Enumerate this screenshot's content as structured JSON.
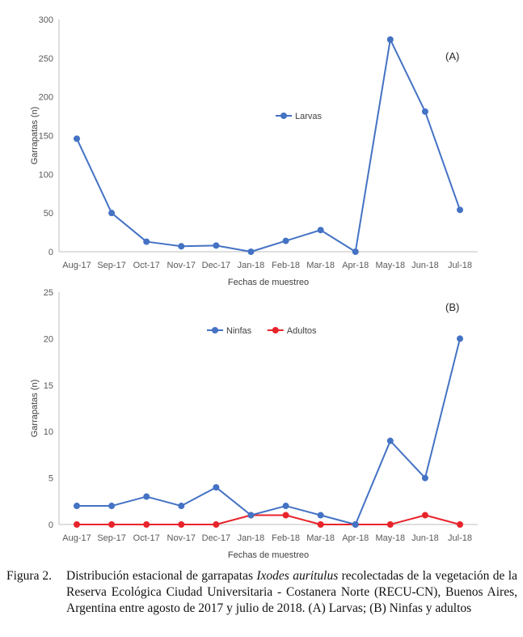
{
  "chart_data": [
    {
      "type": "line",
      "panel_label": "(A)",
      "categories": [
        "Aug-17",
        "Sep-17",
        "Oct-17",
        "Nov-17",
        "Dec-17",
        "Jan-18",
        "Feb-18",
        "Mar-18",
        "Apr-18",
        "May-18",
        "Jun-18",
        "Jul-18"
      ],
      "series": [
        {
          "name": "Larvas",
          "color": "#4472C4",
          "values": [
            146,
            50,
            13,
            7,
            8,
            0,
            14,
            28,
            0,
            274,
            181,
            54
          ]
        }
      ],
      "xlabel": "Fechas de muestreo",
      "ylabel": "Garrapatas (n)",
      "ylim": [
        0,
        300
      ],
      "yticks": [
        0,
        50,
        100,
        150,
        200,
        250,
        300
      ],
      "grid": false,
      "legend_position": "top-center"
    },
    {
      "type": "line",
      "panel_label": "(B)",
      "categories": [
        "Aug-17",
        "Sep-17",
        "Oct-17",
        "Nov-17",
        "Dec-17",
        "Jan-18",
        "Feb-18",
        "Mar-18",
        "Apr-18",
        "May-18",
        "Jun-18",
        "Jul-18"
      ],
      "series": [
        {
          "name": "Ninfas",
          "color": "#4472C4",
          "values": [
            2,
            2,
            3,
            2,
            4,
            1,
            2,
            1,
            0,
            9,
            5,
            20
          ]
        },
        {
          "name": "Adultos",
          "color": "#E8242B",
          "values": [
            0,
            0,
            0,
            0,
            0,
            1,
            1,
            0,
            0,
            0,
            1,
            0
          ]
        }
      ],
      "xlabel": "Fechas de muestreo",
      "ylabel": "Garrapatas (n)",
      "ylim": [
        0,
        25
      ],
      "yticks": [
        0,
        5,
        10,
        15,
        20,
        25
      ],
      "grid": false,
      "legend_position": "top-center"
    }
  ],
  "caption": {
    "label": "Figura 2.",
    "text_before": "Distribución estacional de garrapatas ",
    "species": "Ixodes auritulus",
    "text_after": " recolectadas de la vegetación de la Reserva Ecológica Ciudad Universitaria - Costanera Norte (RECU-CN), Buenos Aires, Argentina entre agosto de 2017 y julio de 2018. (A) Larvas; (B) Ninfas y adultos"
  }
}
